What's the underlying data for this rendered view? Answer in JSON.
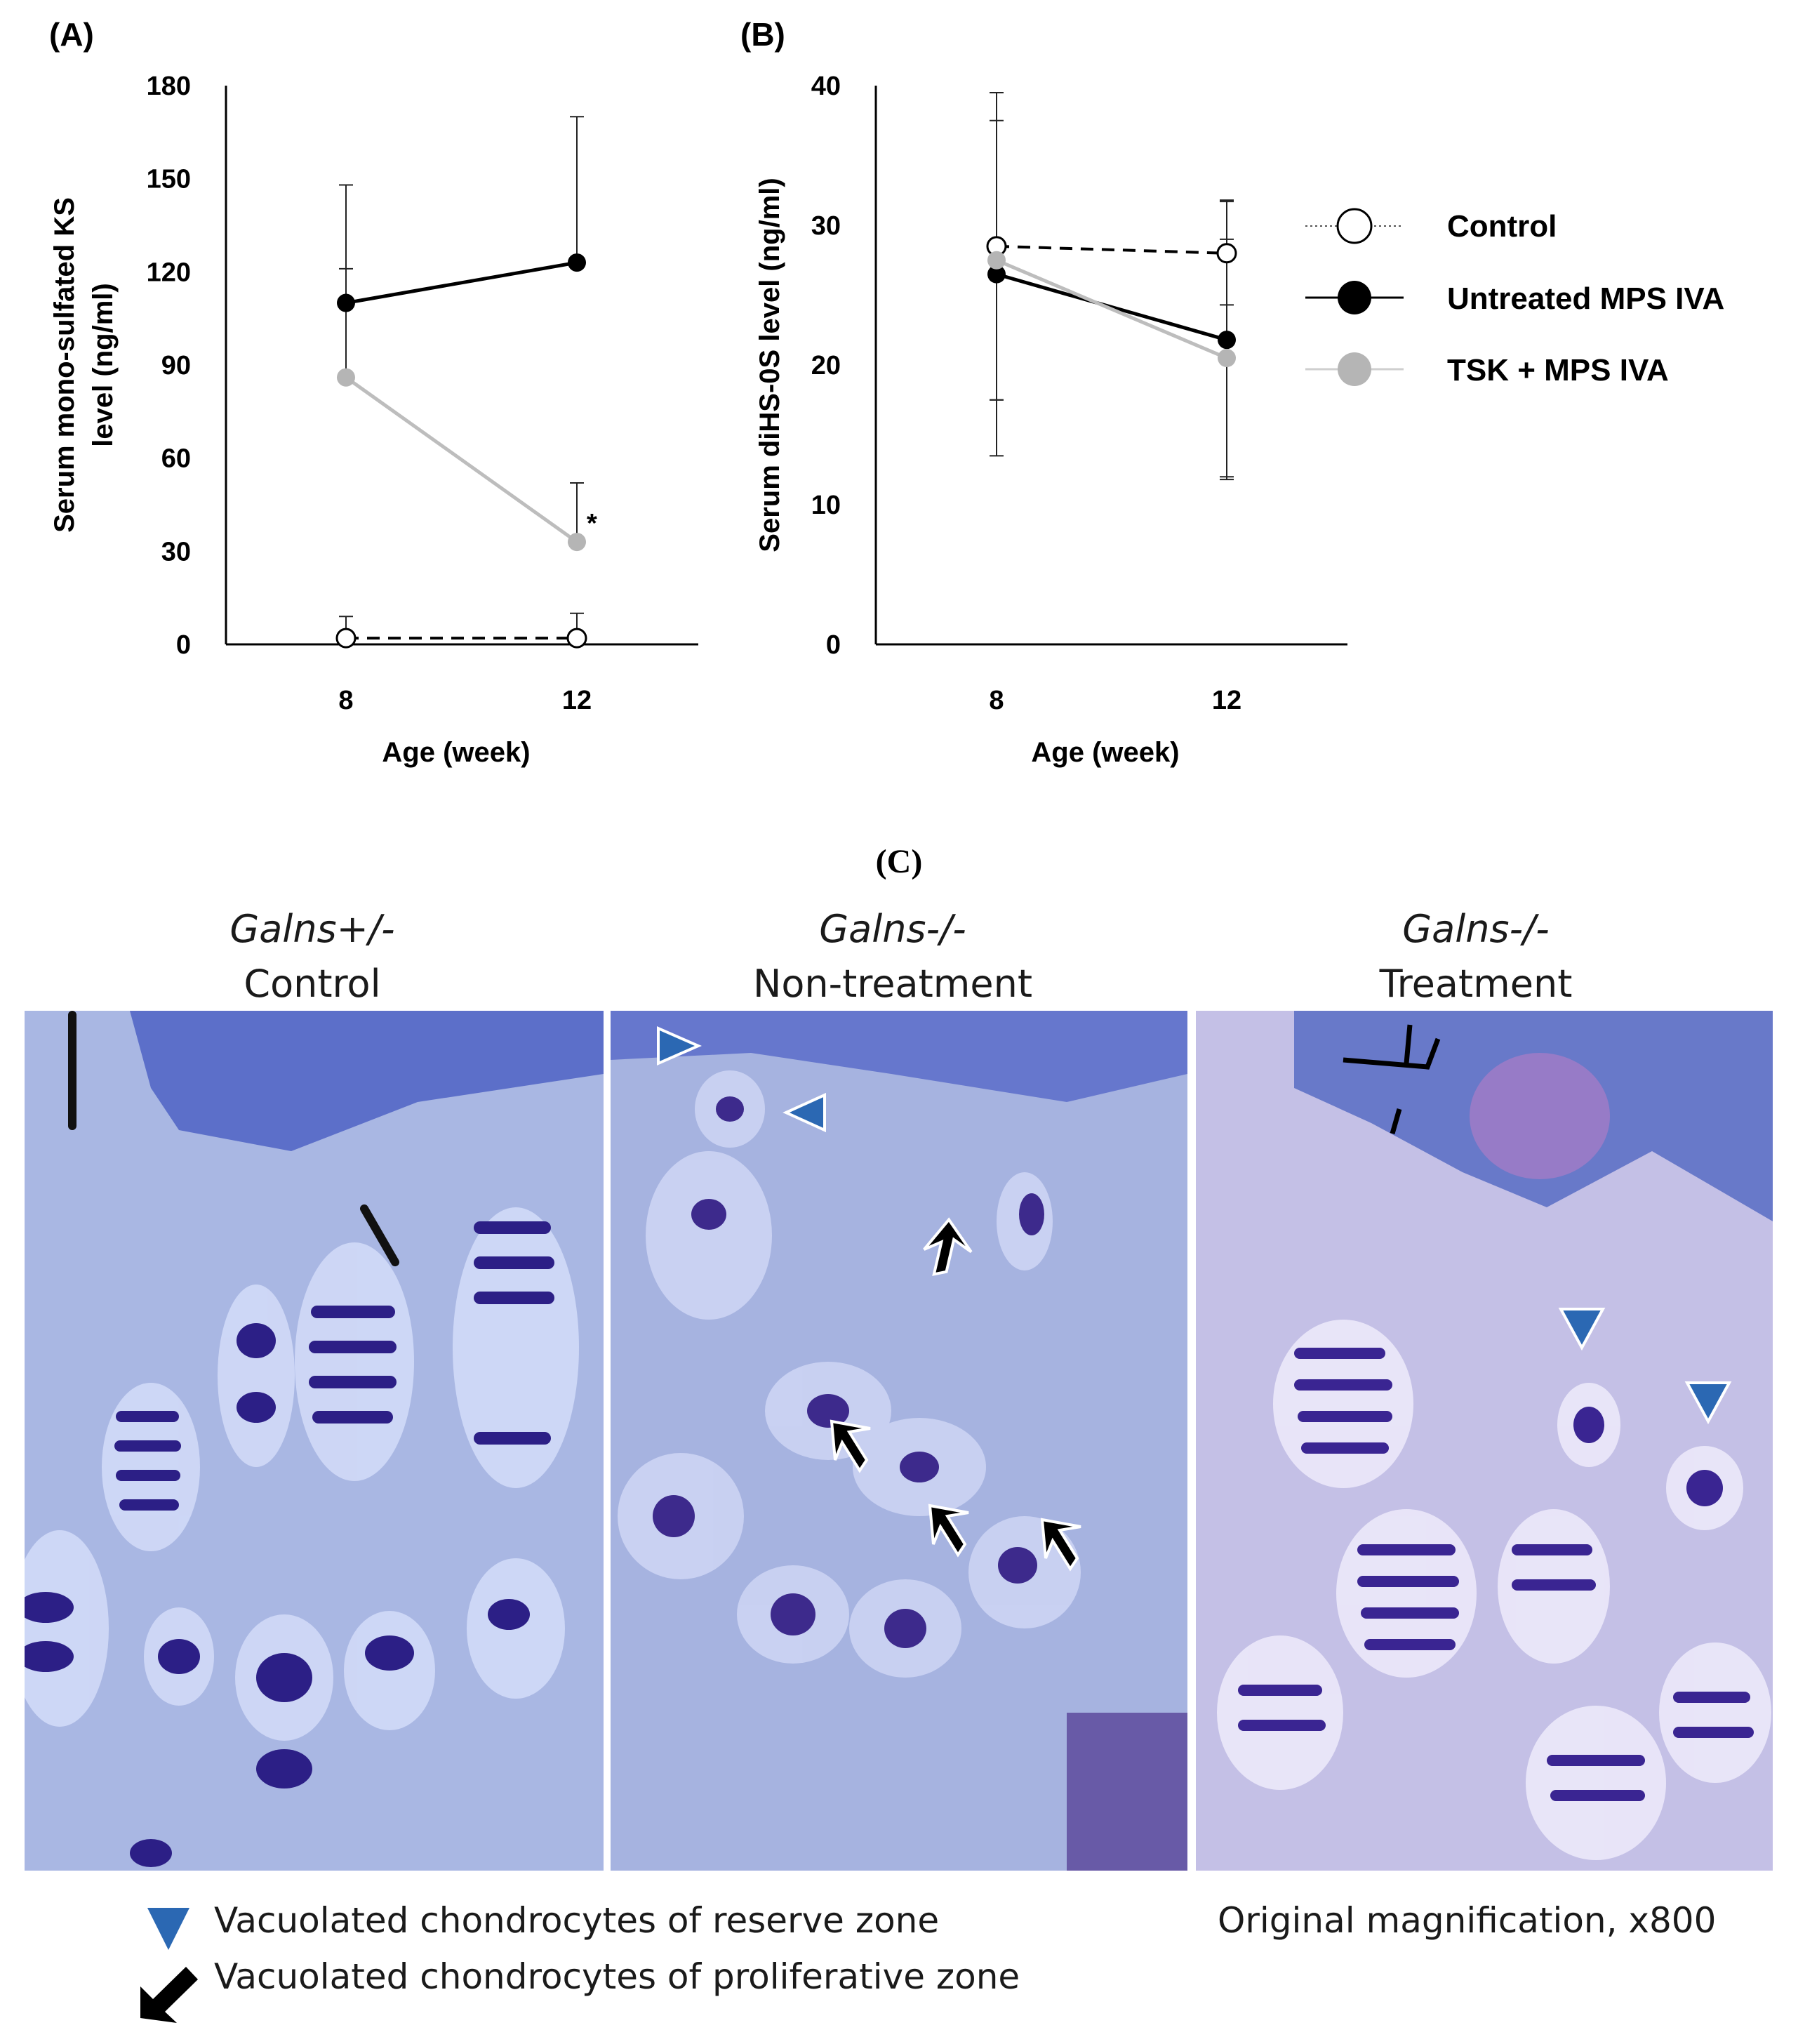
{
  "chart_data": [
    {
      "panel": "(A)",
      "type": "line",
      "x": [
        8,
        12
      ],
      "xlabel": "Age (week)",
      "ylabel": "Serum mono-sulfated KS level (ng/ml)",
      "ylabel_lines": [
        "Serum mono-sulfated KS",
        "level (ng/ml)"
      ],
      "ylim": [
        0,
        180
      ],
      "yticks": [
        0,
        30,
        60,
        90,
        120,
        150,
        180
      ],
      "series": [
        {
          "name": "Control",
          "values": [
            2,
            2
          ],
          "error": [
            7,
            8
          ],
          "color": "#ffffff",
          "line": "dashed"
        },
        {
          "name": "Untreated MPS IVA",
          "values": [
            110,
            123
          ],
          "error": [
            38,
            47
          ],
          "color": "#000000",
          "line": "solid"
        },
        {
          "name": "TSK + MPS IVA",
          "values": [
            86,
            33
          ],
          "error": [
            35,
            19
          ],
          "color": "#b5b5b5",
          "line": "solid"
        }
      ],
      "annotations": [
        {
          "text": "*",
          "x": 12,
          "series": "TSK + MPS IVA"
        }
      ],
      "grid": false
    },
    {
      "panel": "(B)",
      "type": "line",
      "x": [
        8,
        12
      ],
      "xlabel": "Age (week)",
      "ylabel": "Serum diHS-0S level (ng/ml)",
      "ylim": [
        0,
        40
      ],
      "yticks": [
        0,
        10,
        20,
        30,
        40
      ],
      "series": [
        {
          "name": "Control",
          "values": [
            28.5,
            28
          ],
          "error": [
            11,
            3.7
          ],
          "color": "#ffffff",
          "line": "dashed"
        },
        {
          "name": "Untreated MPS IVA",
          "values": [
            26.5,
            21.8
          ],
          "error": [
            13,
            10
          ],
          "color": "#000000",
          "line": "solid"
        },
        {
          "name": "TSK + MPS IVA",
          "values": [
            27.5,
            20.5
          ],
          "error": [
            10,
            8.5
          ],
          "color": "#b5b5b5",
          "line": "solid"
        }
      ],
      "grid": false,
      "legend": "right"
    }
  ],
  "legend": {
    "items": [
      "Control",
      "Untreated MPS IVA",
      "TSK + MPS IVA"
    ]
  },
  "panel_c": {
    "label": "(C)",
    "images": [
      {
        "genotype": "Galns+/-",
        "condition": "Control"
      },
      {
        "genotype": "Galns-/-",
        "condition": "Non-treatment"
      },
      {
        "genotype": "Galns-/-",
        "condition": "Treatment"
      }
    ],
    "key_reserve": "Vacuolated chondrocytes of reserve zone",
    "key_proliferative": "Vacuolated chondrocytes of proliferative zone",
    "magnification": "Original magnification, x800"
  },
  "colors": {
    "stain_background": "#a9b6e2",
    "nucleus": "#3a2a8c",
    "arrowhead": "#2b68b3",
    "arrow": "#000000"
  }
}
